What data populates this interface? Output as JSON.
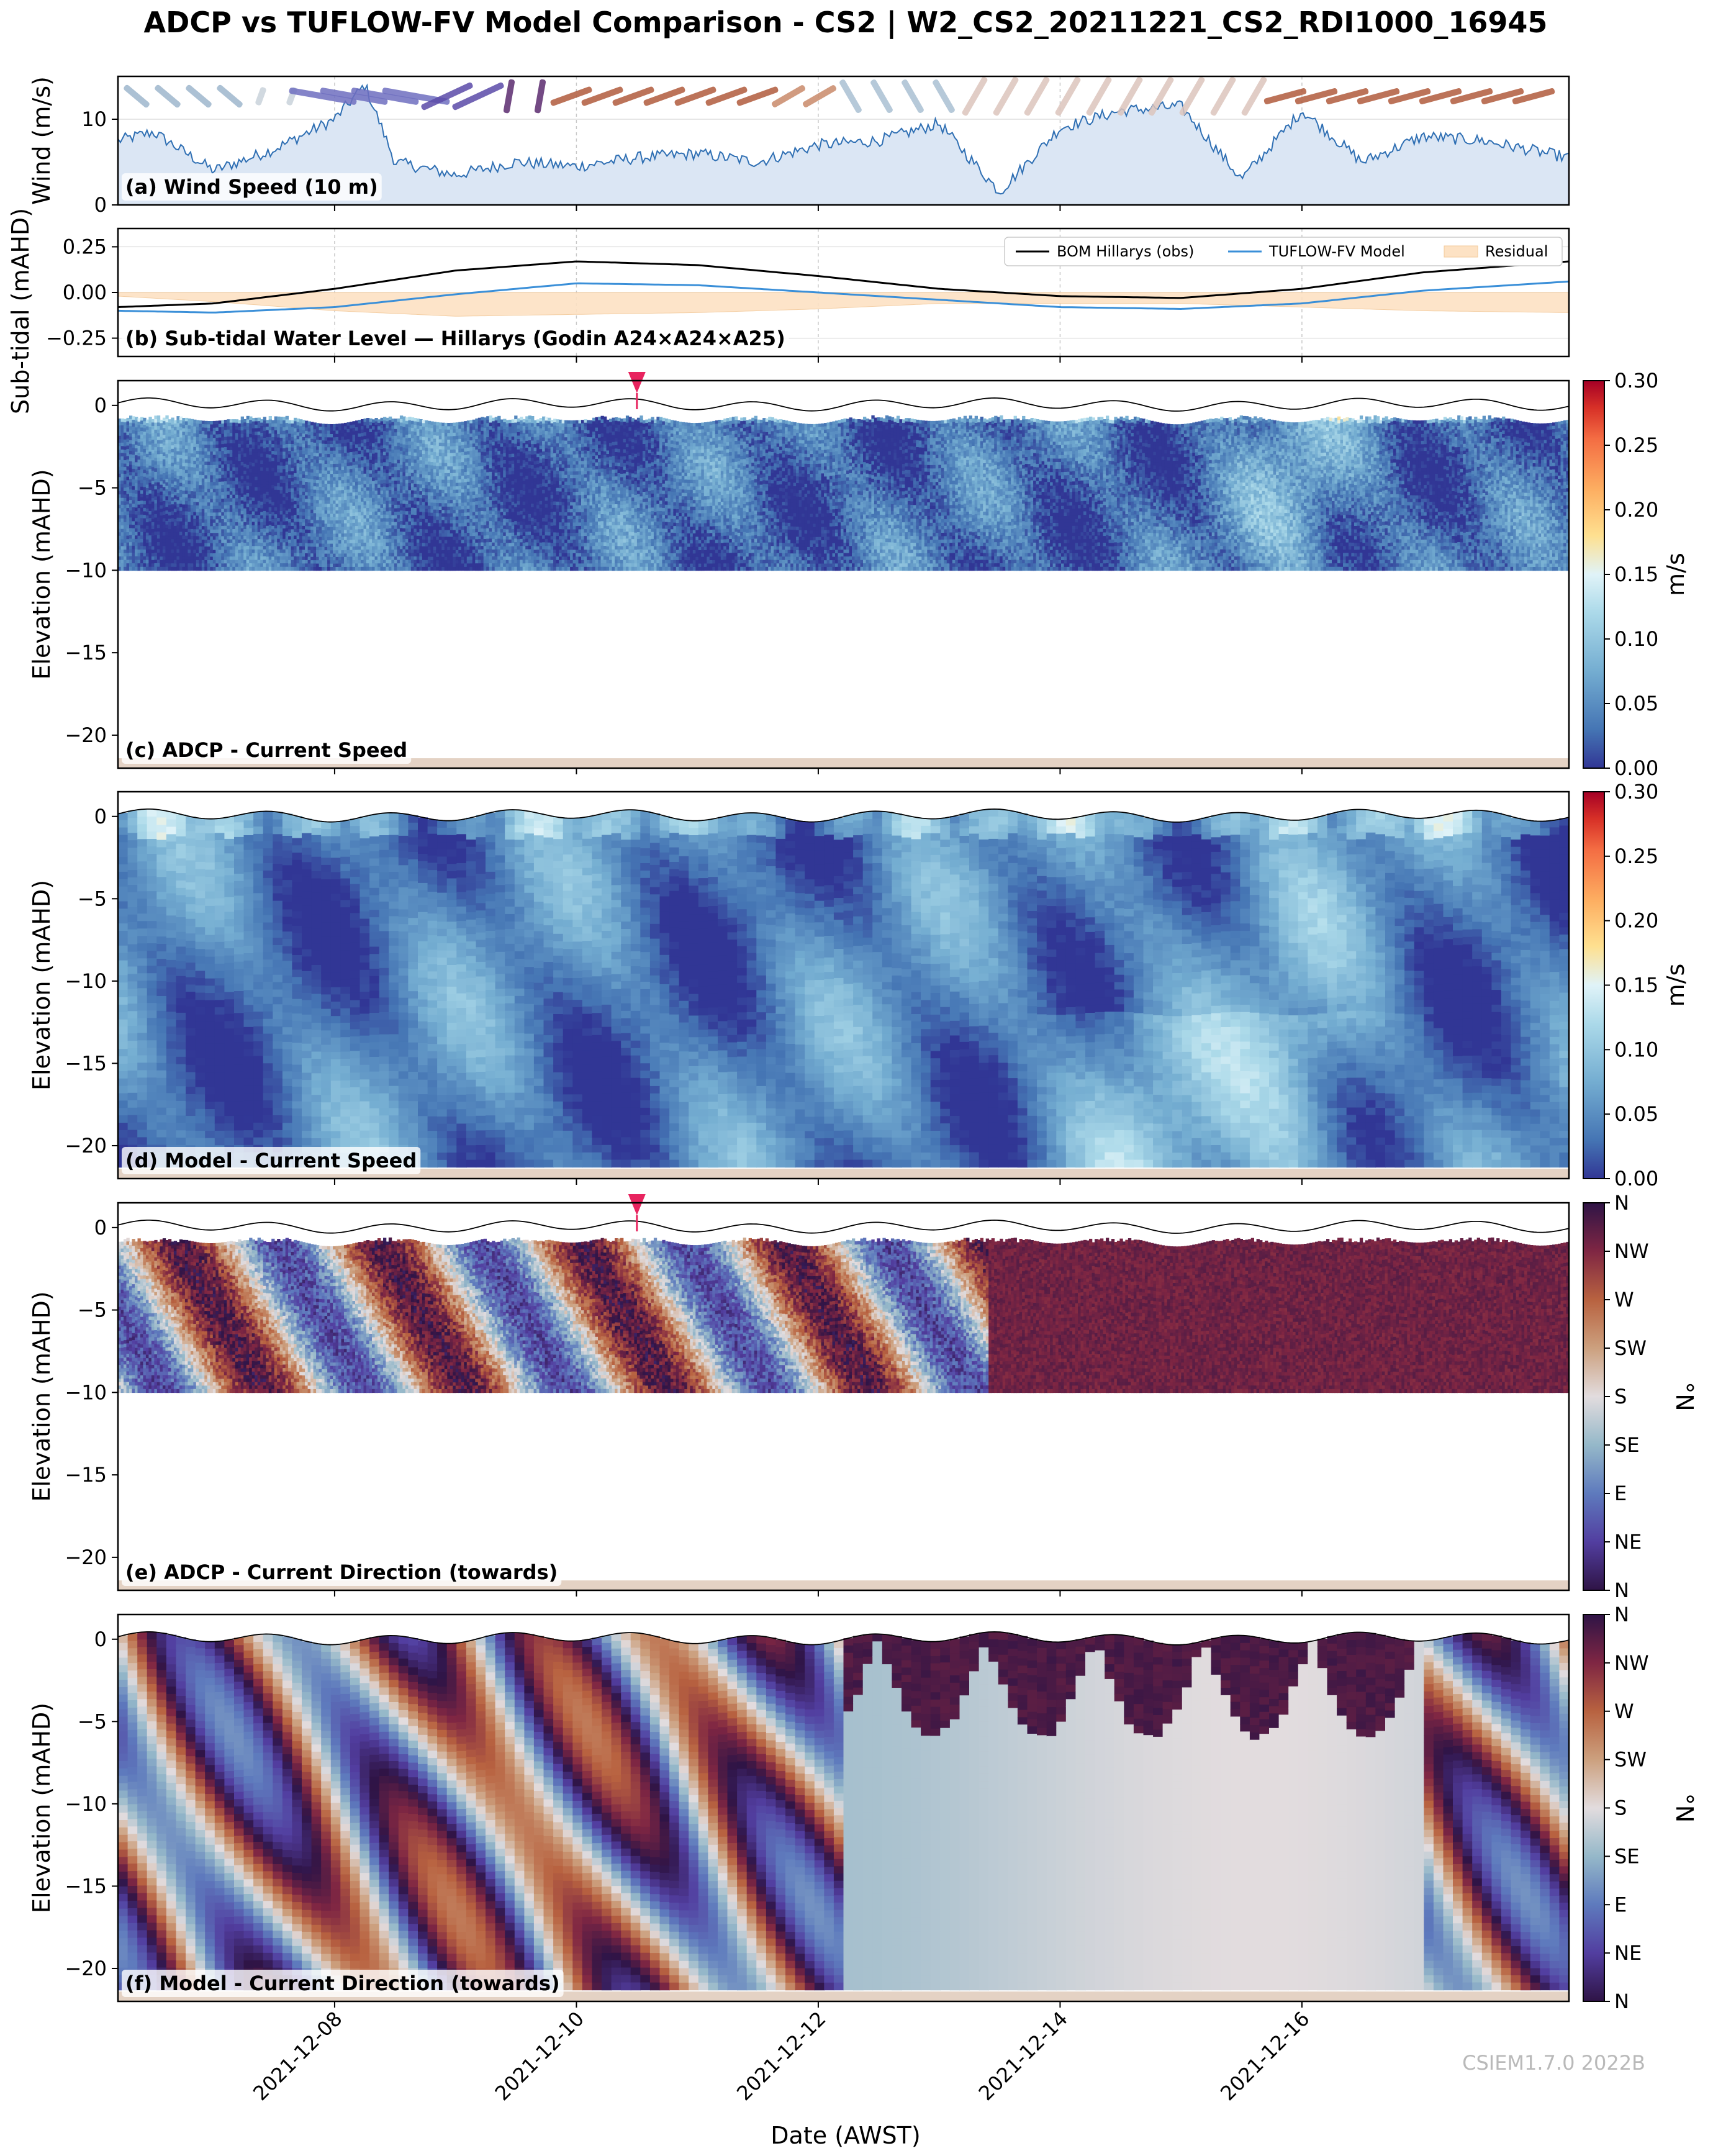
{
  "title": "ADCP vs TUFLOW-FV Model Comparison - CS2 | W2_CS2_20211221_CS2_RDI1000_16945",
  "watermark": "CSIEM1.7.0 2022B",
  "x_axis": {
    "label": "Date (AWST)",
    "range": [
      "2021-12-06T05:00",
      "2021-12-18T05:00"
    ],
    "ticks": [
      "2021-12-08",
      "2021-12-10",
      "2021-12-12",
      "2021-12-14",
      "2021-12-16"
    ]
  },
  "colors": {
    "obs_line": "#000000",
    "model_line": "#3a8fd8",
    "residual_fill": "#fde2c4",
    "wind_fill": "#dbe6f4",
    "wind_line": "#2f6fb3",
    "seabed": "#e4d2c4",
    "marker": "#e8245f"
  },
  "chart_data": [
    {
      "id": "a",
      "type": "area",
      "panel_label": "(a) Wind Speed (10 m)",
      "ylabel": "Wind (m/s)",
      "ylim": [
        0,
        15
      ],
      "yticks": [
        0,
        10
      ],
      "x": [
        "12-06 05:00",
        "12-06 12:00",
        "12-07 00:00",
        "12-07 12:00",
        "12-08 00:00",
        "12-08 06:00",
        "12-08 12:00",
        "12-09 00:00",
        "12-09 12:00",
        "12-10 00:00",
        "12-10 12:00",
        "12-11 00:00",
        "12-11 12:00",
        "12-12 00:00",
        "12-12 12:00",
        "12-13 00:00",
        "12-13 12:00",
        "12-14 00:00",
        "12-14 12:00",
        "12-15 00:00",
        "12-15 12:00",
        "12-16 00:00",
        "12-16 12:00",
        "12-17 00:00",
        "12-17 12:00",
        "12-18 05:00"
      ],
      "values": [
        7.5,
        8.5,
        4.0,
        6.5,
        10.0,
        14.0,
        5.0,
        3.5,
        5.0,
        4.5,
        5.5,
        6.0,
        5.0,
        7.0,
        7.5,
        9.5,
        1.5,
        9.0,
        11.0,
        11.5,
        3.0,
        11.0,
        5.0,
        8.0,
        7.5,
        5.5
      ],
      "arrows_note": "wind direction arrows along top"
    },
    {
      "id": "b",
      "type": "line",
      "panel_label": "(b) Sub-tidal Water Level — Hillarys (Godin A24×A24×A25)",
      "ylabel": "Sub-tidal (mAHD)",
      "ylim": [
        -0.35,
        0.35
      ],
      "yticks": [
        -0.25,
        0.0,
        0.25
      ],
      "legend": [
        "BOM Hillarys (obs)",
        "TUFLOW-FV Model",
        "Residual"
      ],
      "legend_position": "top-right",
      "x": [
        "12-06 05:00",
        "12-07 00:00",
        "12-08 00:00",
        "12-09 00:00",
        "12-10 00:00",
        "12-11 00:00",
        "12-12 00:00",
        "12-13 00:00",
        "12-14 00:00",
        "12-15 00:00",
        "12-16 00:00",
        "12-17 00:00",
        "12-18 05:00"
      ],
      "series": [
        {
          "name": "BOM Hillarys (obs)",
          "values": [
            -0.08,
            -0.06,
            0.02,
            0.12,
            0.17,
            0.15,
            0.09,
            0.02,
            -0.02,
            -0.03,
            0.02,
            0.11,
            0.17
          ]
        },
        {
          "name": "TUFLOW-FV Model",
          "values": [
            -0.1,
            -0.11,
            -0.08,
            -0.01,
            0.05,
            0.04,
            0.0,
            -0.04,
            -0.08,
            -0.09,
            -0.06,
            0.01,
            0.06
          ]
        },
        {
          "name": "Residual",
          "values": [
            -0.02,
            -0.05,
            -0.1,
            -0.13,
            -0.12,
            -0.11,
            -0.09,
            -0.06,
            -0.06,
            -0.06,
            -0.08,
            -0.1,
            -0.11
          ]
        }
      ]
    },
    {
      "id": "c",
      "type": "heatmap",
      "panel_label": "(c) ADCP - Current Speed",
      "ylabel": "Elevation (mAHD)",
      "ylim": [
        -22,
        1.5
      ],
      "yticks": [
        0,
        -5,
        -10,
        -15,
        -20
      ],
      "data_bottom": -10,
      "colorbar": {
        "label": "m/s",
        "range": [
          0,
          0.3
        ],
        "ticks": [
          "0.00",
          "0.05",
          "0.10",
          "0.15",
          "0.20",
          "0.25",
          "0.30"
        ]
      },
      "marker_at": "2021-12-10T12:00"
    },
    {
      "id": "d",
      "type": "heatmap",
      "panel_label": "(d) Model - Current Speed",
      "ylabel": "Elevation (mAHD)",
      "ylim": [
        -22,
        1.5
      ],
      "yticks": [
        0,
        -5,
        -10,
        -15,
        -20
      ],
      "data_bottom": -21.3,
      "colorbar": {
        "label": "m/s",
        "range": [
          0,
          0.3
        ],
        "ticks": [
          "0.00",
          "0.05",
          "0.10",
          "0.15",
          "0.20",
          "0.25",
          "0.30"
        ]
      }
    },
    {
      "id": "e",
      "type": "heatmap",
      "panel_label": "(e) ADCP - Current Direction (towards)",
      "ylabel": "Elevation (mAHD)",
      "ylim": [
        -22,
        1.5
      ],
      "yticks": [
        0,
        -5,
        -10,
        -15,
        -20
      ],
      "data_bottom": -10,
      "colorbar": {
        "label": "°N",
        "range": [
          0,
          360
        ],
        "ticks": [
          "N",
          "NE",
          "E",
          "SE",
          "S",
          "SW",
          "W",
          "NW",
          "N"
        ]
      },
      "marker_at": "2021-12-10T12:00"
    },
    {
      "id": "f",
      "type": "heatmap",
      "panel_label": "(f) Model - Current Direction (towards)",
      "ylabel": "Elevation (mAHD)",
      "ylim": [
        -22,
        1.5
      ],
      "yticks": [
        0,
        -5,
        -10,
        -15,
        -20
      ],
      "data_bottom": -21.3,
      "colorbar": {
        "label": "°N",
        "range": [
          0,
          360
        ],
        "ticks": [
          "N",
          "NE",
          "E",
          "SE",
          "S",
          "SW",
          "W",
          "NW",
          "N"
        ]
      }
    }
  ]
}
